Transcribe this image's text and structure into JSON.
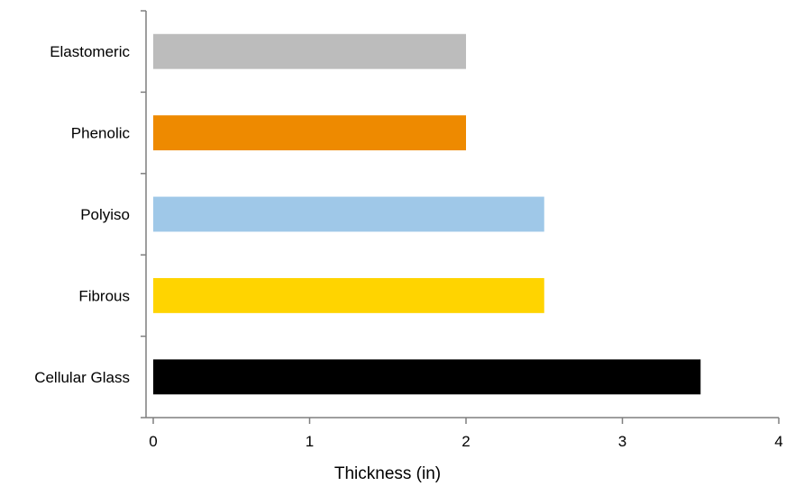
{
  "chart_data": {
    "type": "bar",
    "orientation": "horizontal",
    "categories": [
      "Elastomeric",
      "Phenolic",
      "Polyiso",
      "Fibrous",
      "Cellular Glass"
    ],
    "values": [
      2,
      2,
      2.5,
      2.5,
      3.5
    ],
    "colors": [
      "#bcbcbc",
      "#ee8a00",
      "#9fc8e8",
      "#ffd400",
      "#000000"
    ],
    "title": "",
    "xlabel": "Thickness (in)",
    "ylabel": "",
    "xlim": [
      0,
      4
    ],
    "xticks": [
      "0",
      "1",
      "2",
      "3",
      "4"
    ],
    "grid": false,
    "legend": "none"
  }
}
